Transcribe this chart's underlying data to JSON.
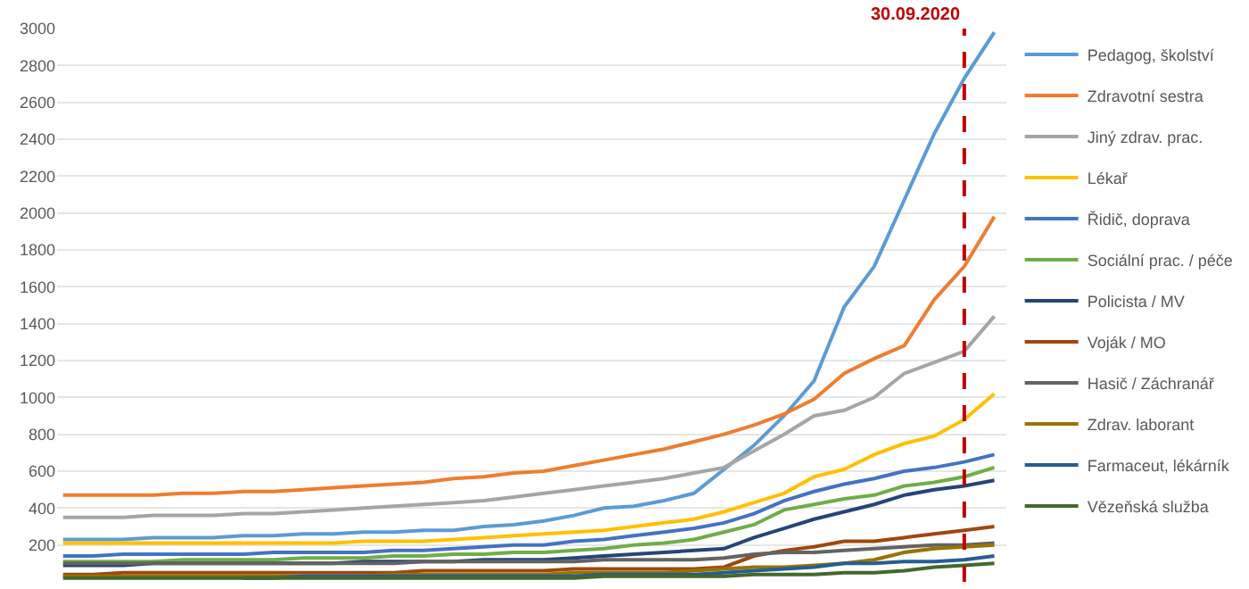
{
  "chart_data": {
    "type": "line",
    "categories": [
      null,
      null,
      null,
      null,
      null,
      null,
      null,
      null,
      null,
      null,
      null,
      null,
      null,
      null,
      null,
      null,
      null,
      null,
      null,
      null,
      null,
      null,
      null,
      null,
      null,
      null,
      null,
      null,
      null,
      null,
      null,
      null
    ],
    "ylim": [
      0,
      3000
    ],
    "yticks": [
      200,
      400,
      600,
      800,
      1000,
      1200,
      1400,
      1600,
      1800,
      2000,
      2200,
      2400,
      2600,
      2800,
      3000
    ],
    "grid": "y",
    "legend": "right",
    "marker": "none",
    "line_style": "solid",
    "annotations": [
      "30.09.2020"
    ],
    "series": [
      {
        "name": "Pedagog, školství",
        "color": "#5b9bd5",
        "values": [
          230,
          230,
          230,
          240,
          240,
          240,
          250,
          250,
          260,
          260,
          270,
          270,
          280,
          280,
          300,
          310,
          330,
          360,
          400,
          410,
          440,
          480,
          610,
          740,
          900,
          1090,
          1490,
          1710,
          2070,
          2430,
          2730,
          2980
        ]
      },
      {
        "name": "Zdravotní sestra",
        "color": "#ed7d31",
        "values": [
          470,
          470,
          470,
          470,
          480,
          480,
          490,
          490,
          500,
          510,
          520,
          530,
          540,
          560,
          570,
          590,
          600,
          630,
          660,
          690,
          720,
          760,
          800,
          850,
          910,
          990,
          1130,
          1210,
          1280,
          1530,
          1710,
          1980
        ]
      },
      {
        "name": "Jiný zdrav. prac.",
        "color": "#a5a5a5",
        "values": [
          350,
          350,
          350,
          360,
          360,
          360,
          370,
          370,
          380,
          390,
          400,
          410,
          420,
          430,
          440,
          460,
          480,
          500,
          520,
          540,
          560,
          590,
          620,
          710,
          800,
          900,
          930,
          1000,
          1130,
          1190,
          1250,
          1440
        ]
      },
      {
        "name": "Lékař",
        "color": "#ffc000",
        "values": [
          210,
          210,
          210,
          210,
          210,
          210,
          210,
          210,
          210,
          210,
          220,
          220,
          220,
          230,
          240,
          250,
          260,
          270,
          280,
          300,
          320,
          340,
          380,
          430,
          480,
          570,
          610,
          690,
          750,
          790,
          880,
          1020
        ]
      },
      {
        "name": "Řidič, doprava",
        "color": "#4472c4",
        "values": [
          140,
          140,
          150,
          150,
          150,
          150,
          150,
          160,
          160,
          160,
          160,
          170,
          170,
          180,
          190,
          200,
          200,
          220,
          230,
          250,
          270,
          290,
          320,
          370,
          440,
          490,
          530,
          560,
          600,
          620,
          650,
          690
        ]
      },
      {
        "name": "Sociální prac. / péče",
        "color": "#70ad47",
        "values": [
          110,
          110,
          110,
          110,
          120,
          120,
          120,
          120,
          130,
          130,
          130,
          140,
          140,
          150,
          150,
          160,
          160,
          170,
          180,
          200,
          210,
          230,
          270,
          310,
          390,
          420,
          450,
          470,
          520,
          540,
          570,
          620
        ]
      },
      {
        "name": "Policista / MV",
        "color": "#264478",
        "values": [
          90,
          90,
          90,
          100,
          100,
          100,
          100,
          100,
          100,
          100,
          110,
          110,
          110,
          110,
          120,
          120,
          120,
          130,
          140,
          150,
          160,
          170,
          180,
          240,
          290,
          340,
          380,
          420,
          470,
          500,
          520,
          550
        ]
      },
      {
        "name": "Voják / MO",
        "color": "#9e480e",
        "values": [
          40,
          40,
          50,
          50,
          50,
          50,
          50,
          50,
          50,
          50,
          50,
          50,
          60,
          60,
          60,
          60,
          60,
          70,
          70,
          70,
          70,
          70,
          80,
          140,
          170,
          190,
          220,
          220,
          240,
          260,
          280,
          300
        ]
      },
      {
        "name": "Hasič / Záchranář",
        "color": "#636363",
        "values": [
          100,
          100,
          100,
          100,
          100,
          100,
          100,
          100,
          100,
          100,
          100,
          100,
          110,
          110,
          110,
          110,
          110,
          110,
          120,
          120,
          120,
          120,
          130,
          150,
          160,
          160,
          170,
          180,
          190,
          200,
          200,
          210
        ]
      },
      {
        "name": "Zdrav. laborant",
        "color": "#997300",
        "values": [
          30,
          30,
          30,
          30,
          30,
          30,
          30,
          30,
          30,
          30,
          30,
          40,
          40,
          40,
          40,
          40,
          40,
          50,
          50,
          50,
          50,
          60,
          70,
          80,
          80,
          90,
          100,
          120,
          160,
          180,
          190,
          200
        ]
      },
      {
        "name": "Farmaceut, lékárník",
        "color": "#255e91",
        "values": [
          null,
          null,
          null,
          null,
          null,
          null,
          20,
          20,
          30,
          30,
          30,
          30,
          30,
          30,
          30,
          30,
          30,
          30,
          40,
          40,
          40,
          40,
          50,
          60,
          70,
          80,
          100,
          100,
          110,
          110,
          120,
          140
        ]
      },
      {
        "name": "Vězeňská služba",
        "color": "#43682b",
        "values": [
          20,
          20,
          20,
          20,
          20,
          20,
          20,
          20,
          20,
          20,
          20,
          20,
          20,
          20,
          20,
          20,
          20,
          20,
          30,
          30,
          30,
          30,
          30,
          40,
          40,
          40,
          50,
          50,
          60,
          80,
          90,
          100
        ]
      }
    ]
  }
}
